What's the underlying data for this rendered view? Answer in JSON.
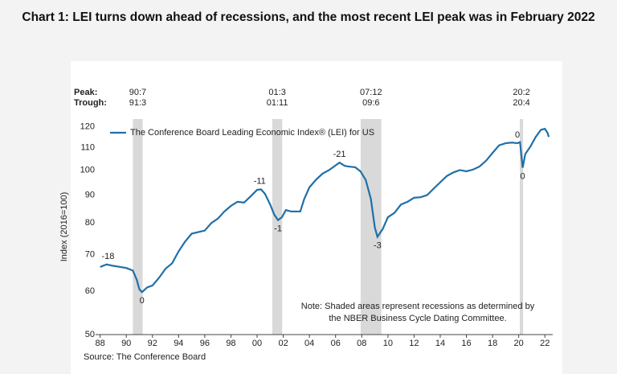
{
  "chart_data": {
    "type": "line",
    "title": "Chart 1: LEI turns down ahead of recessions, and the most recent LEI peak was in February 2022",
    "ylabel": "Index (2016=100)",
    "log_scale_y": true,
    "source": "Source: The Conference Board",
    "note": [
      "Note: Shaded areas represent recessions as determined by",
      "the NBER Business Cycle Dating Committee."
    ],
    "peak_label": "Peak:",
    "trough_label": "Trough:",
    "recessions": [
      {
        "peak": "90:7",
        "trough": "91:3"
      },
      {
        "peak": "01:3",
        "trough": "01:11"
      },
      {
        "peak": "07:12",
        "trough": "09:6"
      },
      {
        "peak": "20:2",
        "trough": "20:4"
      }
    ],
    "recession_color": "#d9d9d9",
    "xlim": [
      1987.9,
      2022.6
    ],
    "xticks": [
      {
        "value": 1988,
        "label": "88"
      },
      {
        "value": 1990,
        "label": "90"
      },
      {
        "value": 1992,
        "label": "92"
      },
      {
        "value": 1994,
        "label": "94"
      },
      {
        "value": 1996,
        "label": "96"
      },
      {
        "value": 1998,
        "label": "98"
      },
      {
        "value": 2000,
        "label": "00"
      },
      {
        "value": 2002,
        "label": "02"
      },
      {
        "value": 2004,
        "label": "04"
      },
      {
        "value": 2006,
        "label": "06"
      },
      {
        "value": 2008,
        "label": "08"
      },
      {
        "value": 2010,
        "label": "10"
      },
      {
        "value": 2012,
        "label": "12"
      },
      {
        "value": 2014,
        "label": "14"
      },
      {
        "value": 2016,
        "label": "16"
      },
      {
        "value": 2018,
        "label": "18"
      },
      {
        "value": 2020,
        "label": "20"
      },
      {
        "value": 2022,
        "label": "22"
      }
    ],
    "ylim": [
      50,
      124
    ],
    "yticks": [
      50,
      60,
      70,
      80,
      90,
      100,
      110,
      120
    ],
    "series": [
      {
        "name": "The Conference Board Leading Economic Index® (LEI) for US",
        "color": "#1f6fa8",
        "x": [
          1988.0,
          1988.5,
          1989.0,
          1989.5,
          1990.0,
          1990.5,
          1990.8,
          1991.0,
          1991.2,
          1991.6,
          1992.0,
          1992.5,
          1993.0,
          1993.5,
          1994.0,
          1994.5,
          1995.0,
          1995.5,
          1996.0,
          1996.5,
          1997.0,
          1997.5,
          1998.0,
          1998.5,
          1999.0,
          1999.5,
          2000.0,
          2000.3,
          2000.6,
          2001.0,
          2001.3,
          2001.6,
          2001.9,
          2002.2,
          2002.6,
          2003.0,
          2003.3,
          2003.6,
          2004.0,
          2004.5,
          2005.0,
          2005.5,
          2006.0,
          2006.3,
          2006.7,
          2007.0,
          2007.5,
          2007.9,
          2008.3,
          2008.7,
          2009.0,
          2009.2,
          2009.6,
          2010.0,
          2010.5,
          2011.0,
          2011.5,
          2012.0,
          2012.5,
          2013.0,
          2013.5,
          2014.0,
          2014.5,
          2015.0,
          2015.5,
          2016.0,
          2016.5,
          2017.0,
          2017.5,
          2018.0,
          2018.5,
          2019.0,
          2019.5,
          2019.9,
          2020.1,
          2020.3,
          2020.5,
          2020.9,
          2021.3,
          2021.7,
          2022.0,
          2022.2,
          2022.3
        ],
        "values": [
          66.5,
          67.2,
          66.8,
          66.5,
          66.2,
          65.5,
          63.0,
          60.5,
          59.8,
          61.0,
          61.5,
          63.5,
          66,
          67.5,
          71,
          74,
          76.5,
          77,
          77.5,
          80,
          81.5,
          84,
          86,
          87.5,
          87.2,
          89.5,
          92,
          92.2,
          90.5,
          86.5,
          83,
          81,
          82,
          84.5,
          84,
          84,
          84,
          88.5,
          93,
          96,
          98.5,
          100,
          102,
          103.2,
          101.8,
          101.5,
          101.2,
          99.5,
          96,
          88.5,
          78.5,
          75.5,
          78,
          82,
          83.5,
          86.5,
          87.5,
          89,
          89.2,
          90,
          92.5,
          95,
          97.5,
          99,
          100,
          99.5,
          100.2,
          101.5,
          104,
          107.5,
          111,
          112,
          112.3,
          112,
          112.5,
          101,
          107,
          110.5,
          115,
          118.5,
          119,
          117,
          115
        ]
      }
    ],
    "annotations": [
      {
        "text": "-18",
        "x": 1988.6,
        "position": "above"
      },
      {
        "text": "0",
        "x": 1991.2,
        "position": "below"
      },
      {
        "text": "-11",
        "x": 2000.2,
        "position": "above"
      },
      {
        "text": "-1",
        "x": 2001.6,
        "position": "below"
      },
      {
        "text": "-21",
        "x": 2006.3,
        "position": "above"
      },
      {
        "text": "-3",
        "x": 2009.2,
        "position": "below"
      },
      {
        "text": "0",
        "x": 2019.9,
        "position": "above"
      },
      {
        "text": "0",
        "x": 2020.3,
        "position": "below"
      }
    ]
  }
}
